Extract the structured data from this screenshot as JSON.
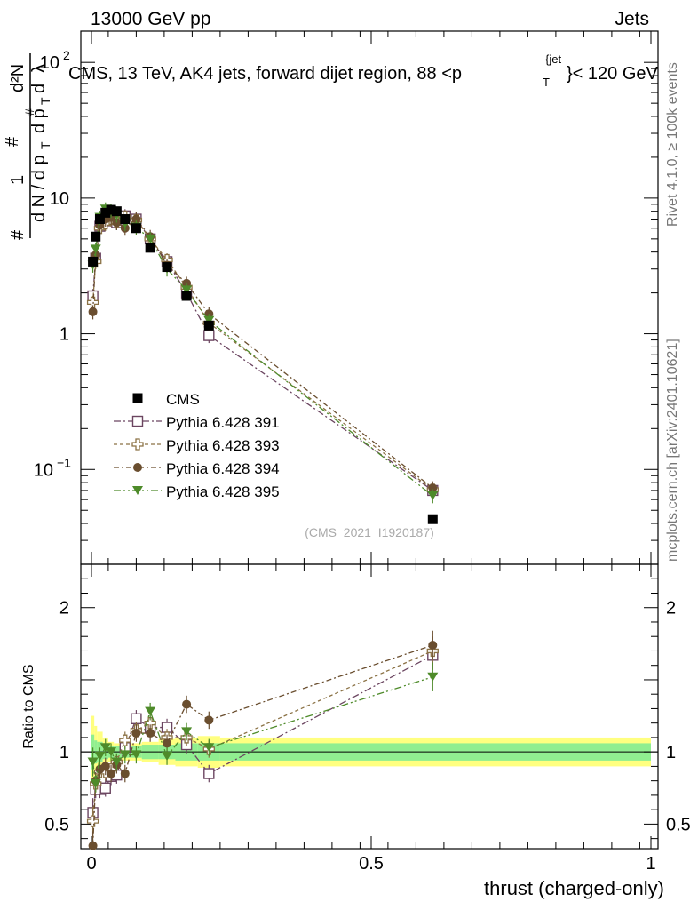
{
  "header": {
    "left": "13000 GeV pp",
    "right": "Jets"
  },
  "chart_data": {
    "type": "scatter",
    "title": "CMS, 13 TeV, AK4 jets, forward dijet region, 88 <p_T^{jet}< 120 GeV",
    "title_main": "CMS, 13 TeV, AK4 jets, forward dijet region, 88 <p",
    "title_sup": "{jet",
    "title_sub": "T",
    "title_end": "}< 120 GeV",
    "xlabel": "thrust (charged-only)",
    "ylabel": "1/dN/dp_T  d²N/dp_T dλ",
    "ylabel_ratio": "Ratio to CMS",
    "reference_tag": "(CMS_2021_I1920187)",
    "side_labels": {
      "rivet": "Rivet 4.1.0, ≥ 100k events",
      "mcplots": "mcplots.cern.ch [arXiv:2401.10621]"
    },
    "xlim": [
      -0.02,
      1.02
    ],
    "ylim_main_log": [
      0.02,
      170
    ],
    "ylim_ratio": [
      0.33,
      2.3
    ],
    "x_ticks": [
      {
        "v": 0,
        "label": "0"
      },
      {
        "v": 0.5,
        "label": "0.5"
      },
      {
        "v": 1,
        "label": "1"
      }
    ],
    "y_ticks_main": [
      {
        "v": 0.1,
        "base": "10",
        "exp": "−1"
      },
      {
        "v": 1,
        "base": "1",
        "exp": ""
      },
      {
        "v": 10,
        "base": "10",
        "exp": ""
      },
      {
        "v": 100,
        "base": "10",
        "exp": "2"
      }
    ],
    "y_ticks_ratio": [
      {
        "v": 0.5,
        "label": "0.5"
      },
      {
        "v": 1,
        "label": "1"
      },
      {
        "v": 2,
        "label": "2"
      }
    ],
    "x": [
      0.0025,
      0.0075,
      0.015,
      0.025,
      0.035,
      0.045,
      0.06,
      0.08,
      0.105,
      0.135,
      0.17,
      0.21,
      0.61
    ],
    "cms": [
      3.4,
      5.2,
      7.0,
      7.8,
      8.2,
      8.0,
      7.0,
      6.0,
      4.3,
      3.1,
      1.9,
      1.15,
      0.043
    ],
    "band": [
      {
        "x0": 0.0,
        "x1": 0.005,
        "inner": 0.12,
        "outer": 0.25
      },
      {
        "x0": 0.005,
        "x1": 0.01,
        "inner": 0.08,
        "outer": 0.18
      },
      {
        "x0": 0.01,
        "x1": 0.02,
        "inner": 0.07,
        "outer": 0.14
      },
      {
        "x0": 0.02,
        "x1": 0.03,
        "inner": 0.05,
        "outer": 0.1
      },
      {
        "x0": 0.03,
        "x1": 0.04,
        "inner": 0.04,
        "outer": 0.07
      },
      {
        "x0": 0.04,
        "x1": 0.05,
        "inner": 0.04,
        "outer": 0.06
      },
      {
        "x0": 0.05,
        "x1": 0.07,
        "inner": 0.04,
        "outer": 0.06
      },
      {
        "x0": 0.07,
        "x1": 0.09,
        "inner": 0.04,
        "outer": 0.06
      },
      {
        "x0": 0.09,
        "x1": 0.12,
        "inner": 0.05,
        "outer": 0.07
      },
      {
        "x0": 0.12,
        "x1": 0.15,
        "inner": 0.05,
        "outer": 0.09
      },
      {
        "x0": 0.15,
        "x1": 0.19,
        "inner": 0.06,
        "outer": 0.1
      },
      {
        "x0": 0.19,
        "x1": 0.23,
        "inner": 0.06,
        "outer": 0.11
      },
      {
        "x0": 0.23,
        "x1": 1.0,
        "inner": 0.06,
        "outer": 0.1
      }
    ],
    "series": [
      {
        "name": "Pythia 6.428 391",
        "marker": "open-square",
        "color": "#6b4560",
        "values": [
          1.9,
          3.6,
          6.2,
          6.8,
          7.2,
          6.6,
          7.4,
          7.0,
          5.0,
          3.4,
          2.0,
          0.97,
          0.07
        ],
        "ratio": [
          0.58,
          0.74,
          0.74,
          0.75,
          0.83,
          0.84,
          1.03,
          1.23,
          1.17,
          1.17,
          1.05,
          0.85,
          1.67
        ]
      },
      {
        "name": "Pythia 6.428 393",
        "marker": "open-cross",
        "color": "#8b7245",
        "values": [
          1.7,
          3.4,
          6.0,
          6.5,
          7.0,
          6.7,
          7.3,
          6.9,
          5.0,
          3.5,
          2.2,
          1.2,
          0.071
        ],
        "ratio": [
          0.52,
          0.78,
          0.86,
          0.86,
          0.88,
          0.93,
          1.08,
          1.15,
          1.2,
          1.1,
          1.1,
          1.02,
          1.7
        ]
      },
      {
        "name": "Pythia 6.428 394",
        "marker": "filled-circle",
        "color": "#6a4e2f",
        "values": [
          1.45,
          3.8,
          6.3,
          7.0,
          7.2,
          6.6,
          6.0,
          7.0,
          5.2,
          3.2,
          2.35,
          1.4,
          0.073
        ],
        "ratio": [
          0.35,
          0.8,
          0.88,
          0.9,
          0.85,
          0.91,
          0.85,
          1.13,
          1.13,
          1.06,
          1.33,
          1.22,
          1.74
        ]
      },
      {
        "name": "Pythia 6.428 395",
        "marker": "filled-triangle",
        "color": "#4e8b2a",
        "values": [
          3.2,
          4.2,
          7.2,
          8.3,
          8.1,
          7.5,
          6.5,
          6.1,
          5.0,
          3.0,
          2.1,
          1.25,
          0.064
        ],
        "ratio": [
          0.93,
          0.78,
          0.97,
          1.03,
          1.0,
          0.93,
          0.98,
          0.98,
          1.28,
          0.97,
          1.14,
          1.03,
          1.52
        ]
      }
    ],
    "legend": {
      "data_label": "CMS",
      "placement": "middle-left"
    }
  }
}
